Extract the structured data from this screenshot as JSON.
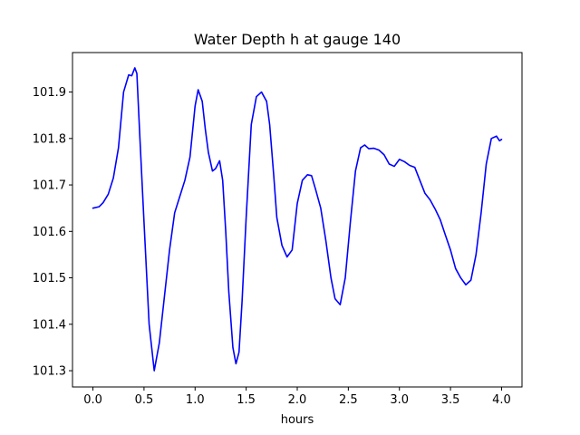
{
  "chart_data": {
    "type": "line",
    "title": "Water Depth h at gauge 140",
    "xlabel": "hours",
    "ylabel": "",
    "xlim": [
      -0.2,
      4.2
    ],
    "ylim": [
      101.265,
      101.985
    ],
    "xticks": [
      0.0,
      0.5,
      1.0,
      1.5,
      2.0,
      2.5,
      3.0,
      3.5,
      4.0
    ],
    "xtick_labels": [
      "0.0",
      "0.5",
      "1.0",
      "1.5",
      "2.0",
      "2.5",
      "3.0",
      "3.5",
      "4.0"
    ],
    "yticks": [
      101.3,
      101.4,
      101.5,
      101.6,
      101.7,
      101.8,
      101.9
    ],
    "ytick_labels": [
      "101.3",
      "101.4",
      "101.5",
      "101.6",
      "101.7",
      "101.8",
      "101.9"
    ],
    "grid": false,
    "legend": "none",
    "series": [
      {
        "color": "#0000ff",
        "x": [
          0.0,
          0.06,
          0.1,
          0.15,
          0.2,
          0.25,
          0.3,
          0.35,
          0.38,
          0.41,
          0.43,
          0.46,
          0.5,
          0.55,
          0.6,
          0.65,
          0.7,
          0.75,
          0.8,
          0.85,
          0.9,
          0.95,
          1.0,
          1.03,
          1.07,
          1.1,
          1.13,
          1.17,
          1.2,
          1.24,
          1.27,
          1.3,
          1.33,
          1.37,
          1.4,
          1.43,
          1.46,
          1.5,
          1.55,
          1.6,
          1.65,
          1.7,
          1.73,
          1.77,
          1.8,
          1.85,
          1.9,
          1.95,
          2.0,
          2.05,
          2.1,
          2.14,
          2.18,
          2.23,
          2.28,
          2.33,
          2.37,
          2.42,
          2.47,
          2.52,
          2.57,
          2.62,
          2.66,
          2.7,
          2.75,
          2.8,
          2.85,
          2.9,
          2.95,
          3.0,
          3.05,
          3.1,
          3.15,
          3.2,
          3.25,
          3.3,
          3.35,
          3.4,
          3.45,
          3.5,
          3.55,
          3.6,
          3.65,
          3.7,
          3.75,
          3.8,
          3.85,
          3.9,
          3.95,
          3.98,
          4.0
        ],
        "y": [
          101.65,
          101.653,
          101.662,
          101.68,
          101.715,
          101.78,
          101.9,
          101.937,
          101.935,
          101.952,
          101.94,
          101.8,
          101.62,
          101.4,
          101.3,
          101.36,
          101.46,
          101.56,
          101.64,
          101.675,
          101.71,
          101.76,
          101.87,
          101.905,
          101.88,
          101.82,
          101.77,
          101.73,
          101.735,
          101.752,
          101.71,
          101.6,
          101.47,
          101.35,
          101.315,
          101.34,
          101.45,
          101.63,
          101.83,
          101.89,
          101.9,
          101.88,
          101.83,
          101.72,
          101.63,
          101.57,
          101.545,
          101.56,
          101.66,
          101.71,
          101.722,
          101.72,
          101.69,
          101.65,
          101.58,
          101.5,
          101.455,
          101.442,
          101.5,
          101.62,
          101.73,
          101.78,
          101.786,
          101.778,
          101.779,
          101.775,
          101.765,
          101.745,
          101.74,
          101.755,
          101.75,
          101.742,
          101.738,
          101.71,
          101.682,
          101.668,
          101.648,
          101.625,
          101.592,
          101.56,
          101.52,
          101.5,
          101.485,
          101.495,
          101.55,
          101.64,
          101.745,
          101.8,
          101.805,
          101.795,
          101.798
        ]
      }
    ]
  }
}
